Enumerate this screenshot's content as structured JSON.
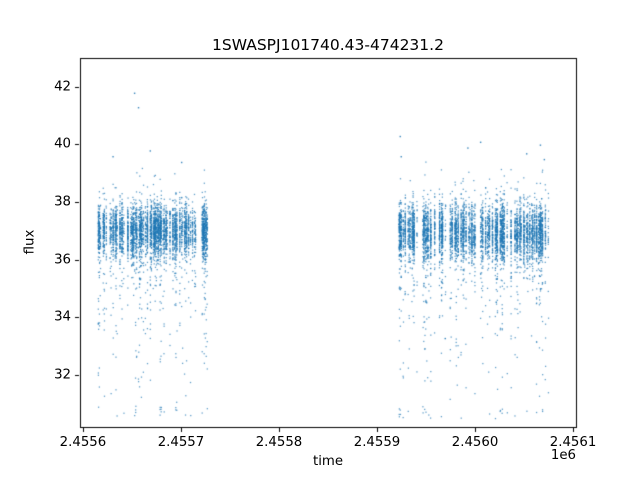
{
  "figure": {
    "background": "#ffffff",
    "spine_color": "#000000"
  },
  "chart_data": {
    "type": "scatter",
    "title": "1SWASPJ101740.43-474231.2",
    "xlabel": "time",
    "ylabel": "flux",
    "x_offset_label": "1e6",
    "point_color": "#1f77b4",
    "grid": false,
    "legend": null,
    "xlim": [
      2455597,
      2456103
    ],
    "ylim": [
      30.2,
      43.0
    ],
    "x_ticks": [
      2455600,
      2455700,
      2455800,
      2455900,
      2456000,
      2456100
    ],
    "x_tick_labels": [
      "2.4556",
      "2.4557",
      "2.4558",
      "2.4559",
      "2.4560",
      "2.4561"
    ],
    "y_ticks": [
      32,
      34,
      36,
      38,
      40,
      42
    ],
    "y_tick_labels": [
      "32",
      "34",
      "36",
      "38",
      "40",
      "42"
    ],
    "description": "SuperWASP light curve: two dense observing seasons of nightly flux measurements, dense band near flux 36-38 with downward outliers to ~30.6 and rare upward outliers to ~41.8",
    "clusters": [
      {
        "x_start": 2455615,
        "x_end": 2455727,
        "night_spacing": 1,
        "active_fraction": 0.62,
        "points_per_night": 58,
        "flux_mean": 37.05,
        "flux_sigma": 0.45,
        "tail_fraction": 0.16,
        "tail_scale": 1.1,
        "upper_fraction": 0.012,
        "upper_scale": 2.0,
        "flux_floor": 30.6
      },
      {
        "x_start": 2455921,
        "x_end": 2456080,
        "night_spacing": 1,
        "active_fraction": 0.56,
        "points_per_night": 60,
        "flux_mean": 37.0,
        "flux_sigma": 0.48,
        "tail_fraction": 0.17,
        "tail_scale": 1.1,
        "upper_fraction": 0.02,
        "upper_scale": 2.2,
        "flux_floor": 30.5
      }
    ],
    "outliers": [
      [
        2455652,
        41.8
      ],
      [
        2455656,
        41.3
      ],
      [
        2455630,
        39.6
      ],
      [
        2455668,
        39.8
      ],
      [
        2455700,
        39.4
      ],
      [
        2455923,
        40.3
      ],
      [
        2455924,
        39.6
      ],
      [
        2455992,
        39.9
      ],
      [
        2456005,
        40.1
      ],
      [
        2456052,
        39.7
      ],
      [
        2456066,
        40.0
      ],
      [
        2456070,
        39.5
      ]
    ]
  }
}
